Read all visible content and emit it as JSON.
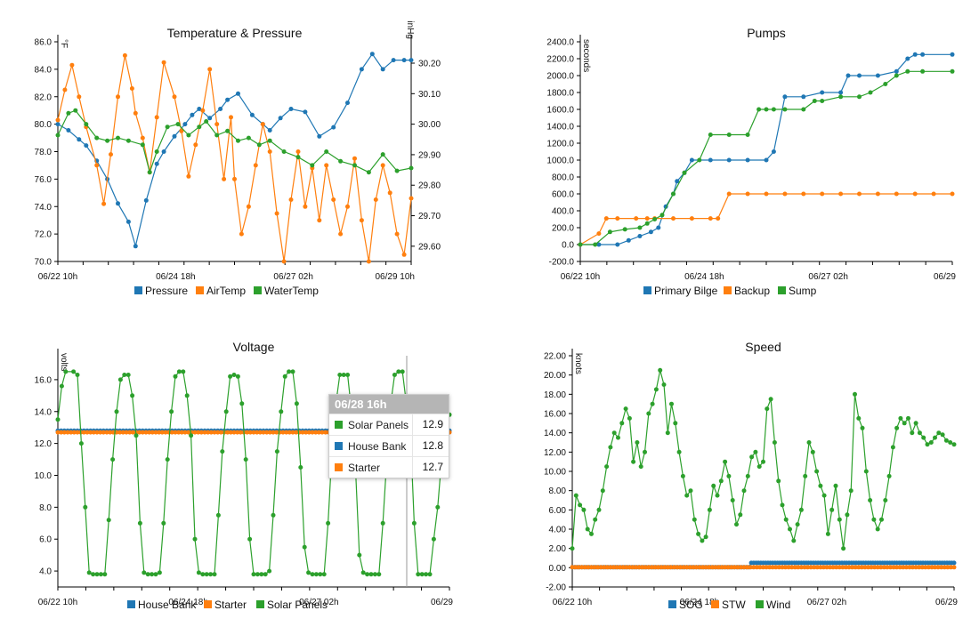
{
  "colors": {
    "blue": "#1f77b4",
    "orange": "#ff7f0e",
    "green": "#2ca02c"
  },
  "chart_data": [
    {
      "type": "line",
      "title": "Temperature & Pressure",
      "x_ticks": [
        "06/22 10h",
        "06/24 18h",
        "06/27 02h",
        "06/29 10h"
      ],
      "ylabel": "°F",
      "ylim": [
        70,
        86
      ],
      "y_ticks": [
        "70.0",
        "72.0",
        "74.0",
        "76.0",
        "78.0",
        "80.0",
        "82.0",
        "84.0",
        "86.0"
      ],
      "y2label": "inHg",
      "y2lim": [
        29.55,
        30.27
      ],
      "y2_ticks": [
        "29.60",
        "29.70",
        "29.80",
        "29.90",
        "30.00",
        "30.10",
        "30.20"
      ],
      "series": [
        {
          "name": "Pressure",
          "color": "#1f77b4",
          "axis": "right",
          "x": [
            0,
            3,
            6,
            8,
            11,
            14,
            17,
            20,
            22,
            25,
            28,
            30,
            33,
            36,
            38,
            40,
            43,
            46,
            48,
            51,
            55,
            58,
            60,
            63,
            66,
            70,
            74,
            78,
            82,
            86,
            89,
            92,
            95,
            98,
            100
          ],
          "y": [
            30.0,
            29.98,
            29.95,
            29.93,
            29.88,
            29.82,
            29.74,
            29.68,
            29.6,
            29.75,
            29.87,
            29.91,
            29.96,
            30.0,
            30.03,
            30.05,
            30.02,
            30.05,
            30.08,
            30.1,
            30.03,
            30.0,
            29.98,
            30.02,
            30.05,
            30.04,
            29.96,
            29.99,
            30.07,
            30.18,
            30.23,
            30.18,
            30.21,
            30.21,
            30.21
          ]
        },
        {
          "name": "AirTemp",
          "color": "#ff7f0e",
          "axis": "left",
          "x": [
            0,
            2,
            4,
            6,
            8,
            11,
            13,
            15,
            17,
            19,
            21,
            22,
            24,
            26,
            28,
            30,
            33,
            35,
            37,
            39,
            41,
            43,
            45,
            47,
            49,
            50,
            52,
            54,
            56,
            58,
            60,
            62,
            64,
            66,
            68,
            70,
            72,
            74,
            76,
            78,
            80,
            82,
            84,
            86,
            88,
            90,
            92,
            94,
            96,
            98,
            100
          ],
          "y": [
            80.3,
            82.5,
            84.3,
            82.0,
            79.8,
            77.0,
            74.2,
            77.8,
            82.0,
            85.0,
            82.6,
            80.8,
            79.0,
            76.5,
            80.5,
            84.5,
            82.0,
            79.5,
            76.2,
            78.5,
            81.0,
            84.0,
            80.0,
            76.0,
            80.5,
            76.0,
            72.0,
            74.0,
            77.0,
            80.0,
            78.0,
            73.5,
            70.0,
            74.5,
            78.0,
            74.0,
            76.8,
            73.0,
            77.0,
            74.5,
            72.0,
            74.0,
            77.5,
            73.0,
            70.0,
            74.5,
            77.0,
            75.0,
            72.0,
            70.5,
            74.6
          ]
        },
        {
          "name": "WaterTemp",
          "color": "#2ca02c",
          "axis": "left",
          "x": [
            0,
            3,
            5,
            8,
            11,
            14,
            17,
            20,
            24,
            26,
            28,
            31,
            34,
            37,
            40,
            42,
            45,
            48,
            51,
            54,
            57,
            60,
            64,
            68,
            72,
            76,
            80,
            84,
            88,
            92,
            96,
            100
          ],
          "y": [
            79.2,
            80.8,
            81.0,
            80.0,
            79.0,
            78.8,
            79.0,
            78.8,
            78.5,
            76.5,
            78.0,
            79.8,
            80.0,
            79.2,
            79.8,
            80.2,
            79.2,
            79.5,
            78.8,
            79.0,
            78.5,
            78.8,
            78.0,
            77.6,
            77.0,
            78.0,
            77.3,
            77.0,
            76.5,
            77.8,
            76.6,
            76.8
          ]
        }
      ],
      "legend": [
        "Pressure",
        "AirTemp",
        "WaterTemp"
      ]
    },
    {
      "type": "line",
      "title": "Pumps",
      "x_ticks": [
        "06/22 10h",
        "06/24 18h",
        "06/27 02h",
        "06/29"
      ],
      "ylabel": "seconds",
      "ylim": [
        -200,
        2400
      ],
      "y_ticks": [
        "-200.0",
        "0.0",
        "200.0",
        "400.0",
        "600.0",
        "800.0",
        "1000.0",
        "1200.0",
        "1400.0",
        "1600.0",
        "1800.0",
        "2000.0",
        "2200.0",
        "2400.0"
      ],
      "series": [
        {
          "name": "Primary Bilge",
          "color": "#1f77b4",
          "x": [
            0,
            5,
            10,
            13,
            16,
            19,
            21,
            23,
            25,
            26,
            28,
            30,
            35,
            40,
            45,
            50,
            52,
            55,
            60,
            65,
            70,
            72,
            75,
            80,
            85,
            88,
            90,
            92,
            100
          ],
          "y": [
            0,
            0,
            0,
            50,
            100,
            150,
            200,
            450,
            600,
            750,
            850,
            1000,
            1000,
            1000,
            1000,
            1000,
            1100,
            1750,
            1750,
            1800,
            1800,
            2000,
            2000,
            2000,
            2050,
            2200,
            2250,
            2250,
            2250
          ]
        },
        {
          "name": "Backup",
          "color": "#ff7f0e",
          "x": [
            0,
            5,
            7,
            10,
            15,
            18,
            20,
            25,
            30,
            35,
            37,
            40,
            45,
            50,
            55,
            60,
            65,
            70,
            75,
            80,
            85,
            90,
            95,
            100
          ],
          "y": [
            0,
            130,
            310,
            310,
            310,
            310,
            310,
            310,
            310,
            310,
            310,
            600,
            600,
            600,
            600,
            600,
            600,
            600,
            600,
            600,
            600,
            600,
            600,
            600
          ]
        },
        {
          "name": "Sump",
          "color": "#2ca02c",
          "x": [
            0,
            4,
            8,
            12,
            16,
            18,
            20,
            22,
            25,
            28,
            32,
            35,
            40,
            45,
            48,
            50,
            52,
            55,
            60,
            63,
            65,
            70,
            75,
            78,
            82,
            85,
            88,
            92,
            100
          ],
          "y": [
            0,
            0,
            150,
            180,
            200,
            250,
            300,
            350,
            600,
            850,
            1000,
            1300,
            1300,
            1300,
            1600,
            1600,
            1600,
            1600,
            1600,
            1700,
            1700,
            1750,
            1750,
            1800,
            1900,
            2000,
            2050,
            2050,
            2050
          ]
        }
      ],
      "legend": [
        "Primary Bilge",
        "Backup",
        "Sump"
      ]
    },
    {
      "type": "line",
      "title": "Voltage",
      "x_ticks": [
        "06/22 10h",
        "06/24 18h",
        "06/27 02h",
        "06/29"
      ],
      "ylabel": "volts",
      "ylim": [
        3.0,
        17.5
      ],
      "y_ticks": [
        "4.0",
        "6.0",
        "8.0",
        "10.0",
        "12.0",
        "14.0",
        "16.0"
      ],
      "series": [
        {
          "name": "House Bank",
          "color": "#1f77b4",
          "x": [
            0,
            100
          ],
          "y": [
            12.8,
            12.8
          ]
        },
        {
          "name": "Starter",
          "color": "#ff7f0e",
          "x": [
            0,
            100
          ],
          "y": [
            12.7,
            12.7
          ]
        },
        {
          "name": "Solar Panels",
          "color": "#2ca02c",
          "x": [
            0,
            1,
            2,
            4,
            5,
            6,
            7,
            8,
            9,
            10,
            11,
            12,
            13,
            14,
            15,
            16,
            17,
            18,
            19,
            20,
            21,
            22,
            23,
            24,
            25,
            26,
            27,
            28,
            29,
            30,
            31,
            32,
            33,
            34,
            35,
            36,
            37,
            38,
            39,
            40,
            41,
            42,
            43,
            44,
            45,
            46,
            47,
            48,
            49,
            50,
            51,
            52,
            53,
            54,
            55,
            56,
            57,
            58,
            59,
            60,
            61,
            62,
            63,
            64,
            65,
            66,
            67,
            68,
            69,
            70,
            71,
            72,
            73,
            74,
            75,
            76,
            77,
            78,
            79,
            80,
            81,
            82,
            83,
            84,
            85,
            86,
            87,
            88,
            89,
            90,
            91,
            92,
            93,
            94,
            95,
            96,
            97,
            98,
            99,
            100
          ],
          "y": [
            13.5,
            15.6,
            16.5,
            16.5,
            16.3,
            12.0,
            8.0,
            3.9,
            3.8,
            3.8,
            3.8,
            3.8,
            7.2,
            11.0,
            14.0,
            16.0,
            16.3,
            16.3,
            15.0,
            12.5,
            7.0,
            3.9,
            3.8,
            3.8,
            3.8,
            3.9,
            7.0,
            11.0,
            14.0,
            16.2,
            16.5,
            16.5,
            15.0,
            12.5,
            6.0,
            3.9,
            3.8,
            3.8,
            3.8,
            3.8,
            7.5,
            11.5,
            14.0,
            16.2,
            16.3,
            16.2,
            14.5,
            11.0,
            6.0,
            3.8,
            3.8,
            3.8,
            3.8,
            4.0,
            7.5,
            11.5,
            14.0,
            16.2,
            16.5,
            16.5,
            14.5,
            10.5,
            5.5,
            3.9,
            3.8,
            3.8,
            3.8,
            3.8,
            7.0,
            11.5,
            14.5,
            16.3,
            16.3,
            16.3,
            14.0,
            10.5,
            5.0,
            3.9,
            3.8,
            3.8,
            3.8,
            3.8,
            7.0,
            11.0,
            14.5,
            16.3,
            16.5,
            16.5,
            14.5,
            12.9,
            7.0,
            3.8,
            3.8,
            3.8,
            3.8,
            6.0,
            8.0,
            11.0,
            12.5,
            13.8
          ]
        }
      ],
      "legend": [
        "House Bank",
        "Starter",
        "Solar Panels"
      ],
      "tooltip": {
        "title": "06/28 16h",
        "rows": [
          {
            "name": "Solar Panels",
            "value": "12.9",
            "color": "#2ca02c"
          },
          {
            "name": "House Bank",
            "value": "12.8",
            "color": "#1f77b4"
          },
          {
            "name": "Starter",
            "value": "12.7",
            "color": "#ff7f0e"
          }
        ]
      }
    },
    {
      "type": "line",
      "title": "Speed",
      "x_ticks": [
        "06/22 10h",
        "06/24 18h",
        "06/27 02h",
        "06/29"
      ],
      "ylabel": "knots",
      "ylim": [
        -2,
        22
      ],
      "y_ticks": [
        "-2.00",
        "0.00",
        "2.00",
        "4.00",
        "6.00",
        "8.00",
        "10.00",
        "12.00",
        "14.00",
        "16.00",
        "18.00",
        "20.00",
        "22.00"
      ],
      "series": [
        {
          "name": "SOG",
          "color": "#1f77b4",
          "x": [
            0,
            46,
            46.5,
            100
          ],
          "y": [
            0.05,
            0.05,
            0.5,
            0.5
          ]
        },
        {
          "name": "STW",
          "color": "#ff7f0e",
          "x": [
            0,
            100
          ],
          "y": [
            0.05,
            0.05
          ]
        },
        {
          "name": "Wind",
          "color": "#2ca02c",
          "x": [
            0,
            1,
            2,
            3,
            4,
            5,
            6,
            7,
            8,
            9,
            10,
            11,
            12,
            13,
            14,
            15,
            16,
            17,
            18,
            19,
            20,
            21,
            22,
            23,
            24,
            25,
            26,
            27,
            28,
            29,
            30,
            31,
            32,
            33,
            34,
            35,
            36,
            37,
            38,
            39,
            40,
            41,
            42,
            43,
            44,
            45,
            46,
            47,
            48,
            49,
            50,
            51,
            52,
            53,
            54,
            55,
            56,
            57,
            58,
            59,
            60,
            61,
            62,
            63,
            64,
            65,
            66,
            67,
            68,
            69,
            70,
            71,
            72,
            73,
            74,
            75,
            76,
            77,
            78,
            79,
            80,
            81,
            82,
            83,
            84,
            85,
            86,
            87,
            88,
            89,
            90,
            91,
            92,
            93,
            94,
            95,
            96,
            97,
            98,
            99,
            100
          ],
          "y": [
            2.0,
            7.5,
            6.5,
            6.0,
            4.0,
            3.5,
            5.0,
            6.0,
            8.0,
            10.5,
            12.5,
            14.0,
            13.5,
            15.0,
            16.5,
            15.5,
            11.0,
            13.0,
            10.5,
            12.0,
            16.0,
            17.0,
            18.5,
            20.5,
            19.0,
            14.0,
            17.0,
            15.0,
            12.0,
            9.5,
            7.5,
            8.0,
            5.0,
            3.5,
            2.8,
            3.2,
            6.0,
            8.5,
            7.5,
            9.0,
            11.0,
            9.5,
            7.0,
            4.5,
            5.5,
            8.0,
            9.5,
            11.5,
            12.0,
            10.5,
            11.0,
            16.5,
            17.5,
            13.0,
            9.0,
            6.5,
            5.0,
            4.0,
            2.8,
            4.5,
            6.0,
            9.5,
            13.0,
            12.0,
            10.0,
            8.5,
            7.5,
            3.5,
            6.0,
            8.5,
            5.0,
            2.0,
            5.5,
            8.0,
            18.0,
            15.5,
            14.5,
            10.0,
            7.0,
            5.0,
            4.0,
            5.0,
            7.0,
            9.5,
            12.5,
            14.5,
            15.5,
            15.0,
            15.5,
            14.0,
            15.0,
            14.0,
            13.5,
            12.8,
            13.0,
            13.5,
            14.0,
            13.8,
            13.2,
            13.0,
            12.8
          ]
        }
      ],
      "legend": [
        "SOG",
        "STW",
        "Wind"
      ]
    }
  ]
}
